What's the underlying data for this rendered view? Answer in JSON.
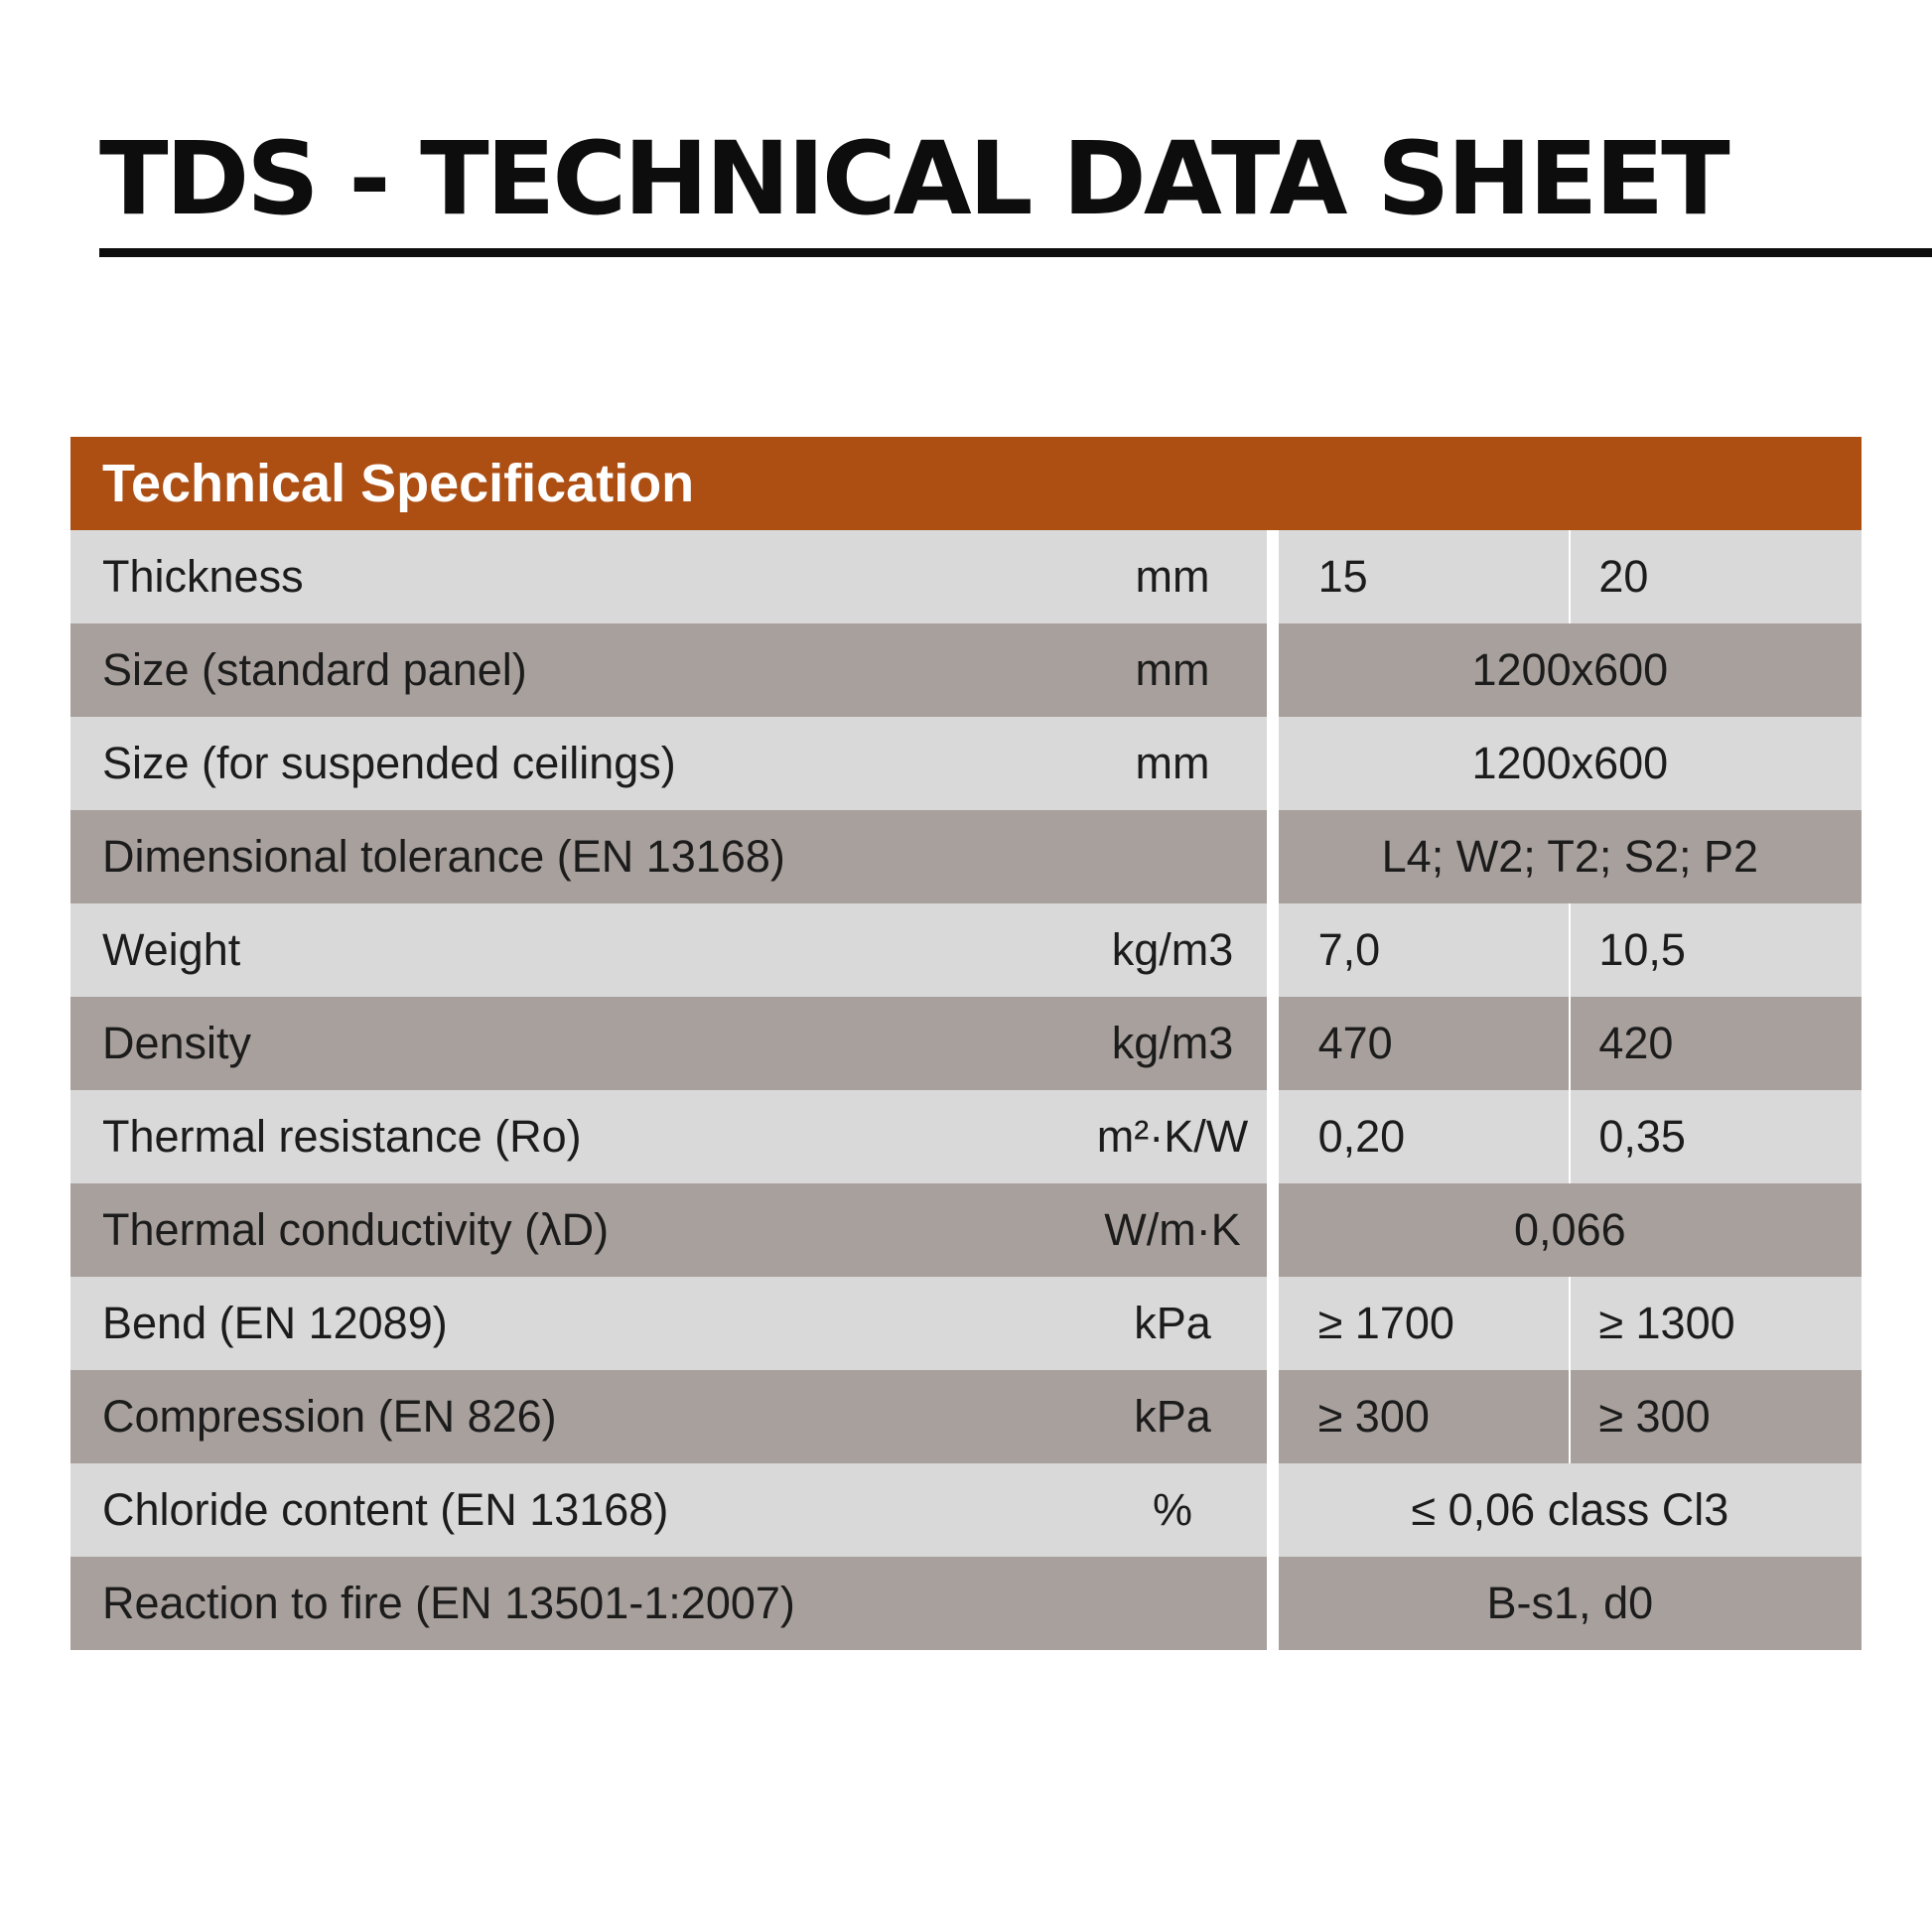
{
  "title": "TDS - TECHNICAL DATA SHEET",
  "table": {
    "header": "Technical Specification",
    "rows": [
      {
        "name": "Thickness",
        "unit": "mm",
        "v1": "15",
        "v2": "20"
      },
      {
        "name": "Size (standard panel)",
        "unit": "mm",
        "value": "1200x600"
      },
      {
        "name": "Size (for suspended ceilings)",
        "unit": "mm",
        "value": "1200x600"
      },
      {
        "name": "Dimensional tolerance (EN 13168)",
        "unit": "",
        "value": "L4; W2; T2; S2; P2"
      },
      {
        "name": "Weight",
        "unit": "kg/m3",
        "v1": "7,0",
        "v2": "10,5"
      },
      {
        "name": "Density",
        "unit": "kg/m3",
        "v1": "470",
        "v2": "420"
      },
      {
        "name": "Thermal resistance (Ro)",
        "unit": "m²·K/W",
        "v1": "0,20",
        "v2": "0,35"
      },
      {
        "name": "Thermal conductivity (λD)",
        "unit": "W/m·K",
        "value": "0,066"
      },
      {
        "name": "Bend (EN 12089)",
        "unit": "kPa",
        "v1": "≥ 1700",
        "v2": "≥ 1300"
      },
      {
        "name": "Compression (EN 826)",
        "unit": "kPa",
        "v1": "≥ 300",
        "v2": "≥ 300"
      },
      {
        "name": "Chloride content (EN 13168)",
        "unit": "%",
        "value": "≤ 0,06 class Cl3"
      },
      {
        "name": "Reaction to fire (EN 13501-1:2007)",
        "unit": "",
        "value": "B-s1, d0"
      }
    ]
  },
  "colors": {
    "header_bg": "#ad4e13",
    "row_light": "#d9d9d9",
    "row_dark": "#a8a09c"
  }
}
